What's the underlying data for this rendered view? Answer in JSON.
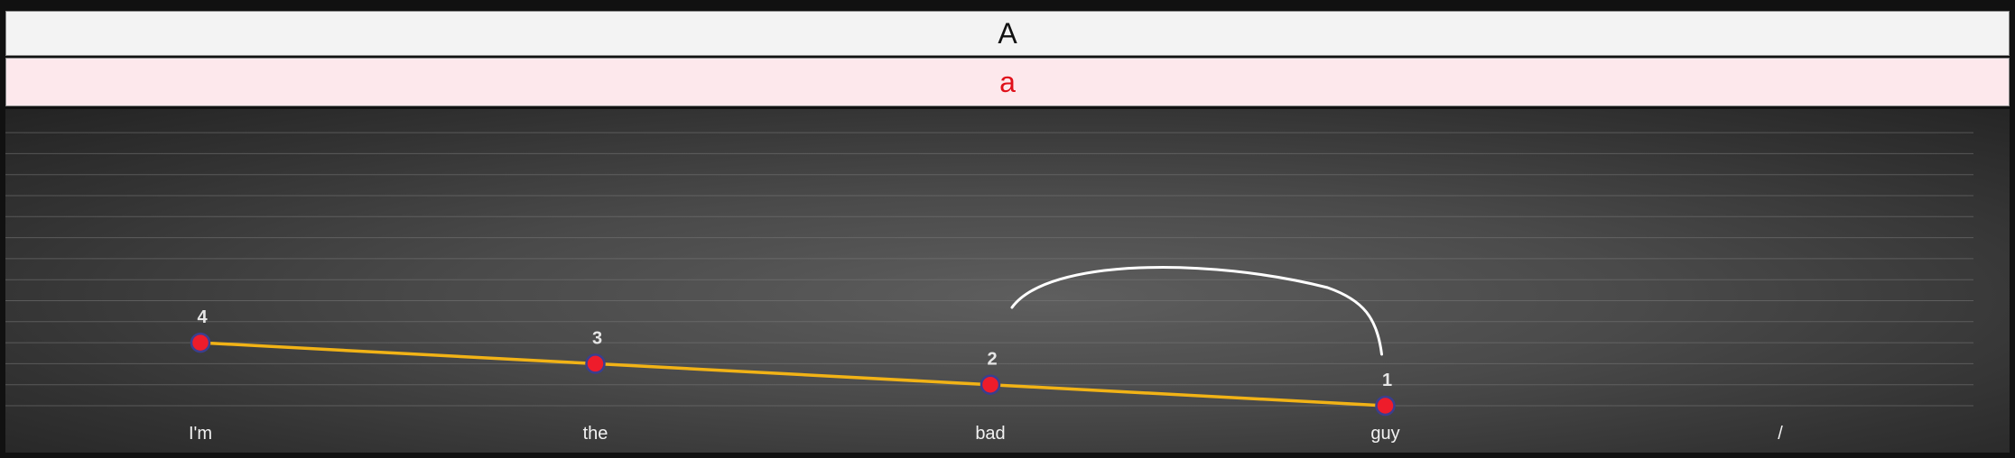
{
  "header": {
    "title": "A",
    "subtitle": "a"
  },
  "colors": {
    "line": "#f2b316",
    "point_fill": "#ee1c2b",
    "point_stroke": "#3a3f8f",
    "arc": "#ffffff",
    "subtitle_text": "#e0101a"
  },
  "chart_data": {
    "type": "line",
    "categories": [
      "I'm",
      "the",
      "bad",
      "guy",
      "/"
    ],
    "series": [
      {
        "values": [
          4,
          3,
          2,
          1,
          null
        ]
      }
    ],
    "point_labels": [
      "4",
      "3",
      "2",
      "1"
    ],
    "ylim": [
      0,
      14
    ],
    "grid": true,
    "annotation": {
      "type": "arc",
      "from": "bad",
      "to": "guy"
    }
  }
}
